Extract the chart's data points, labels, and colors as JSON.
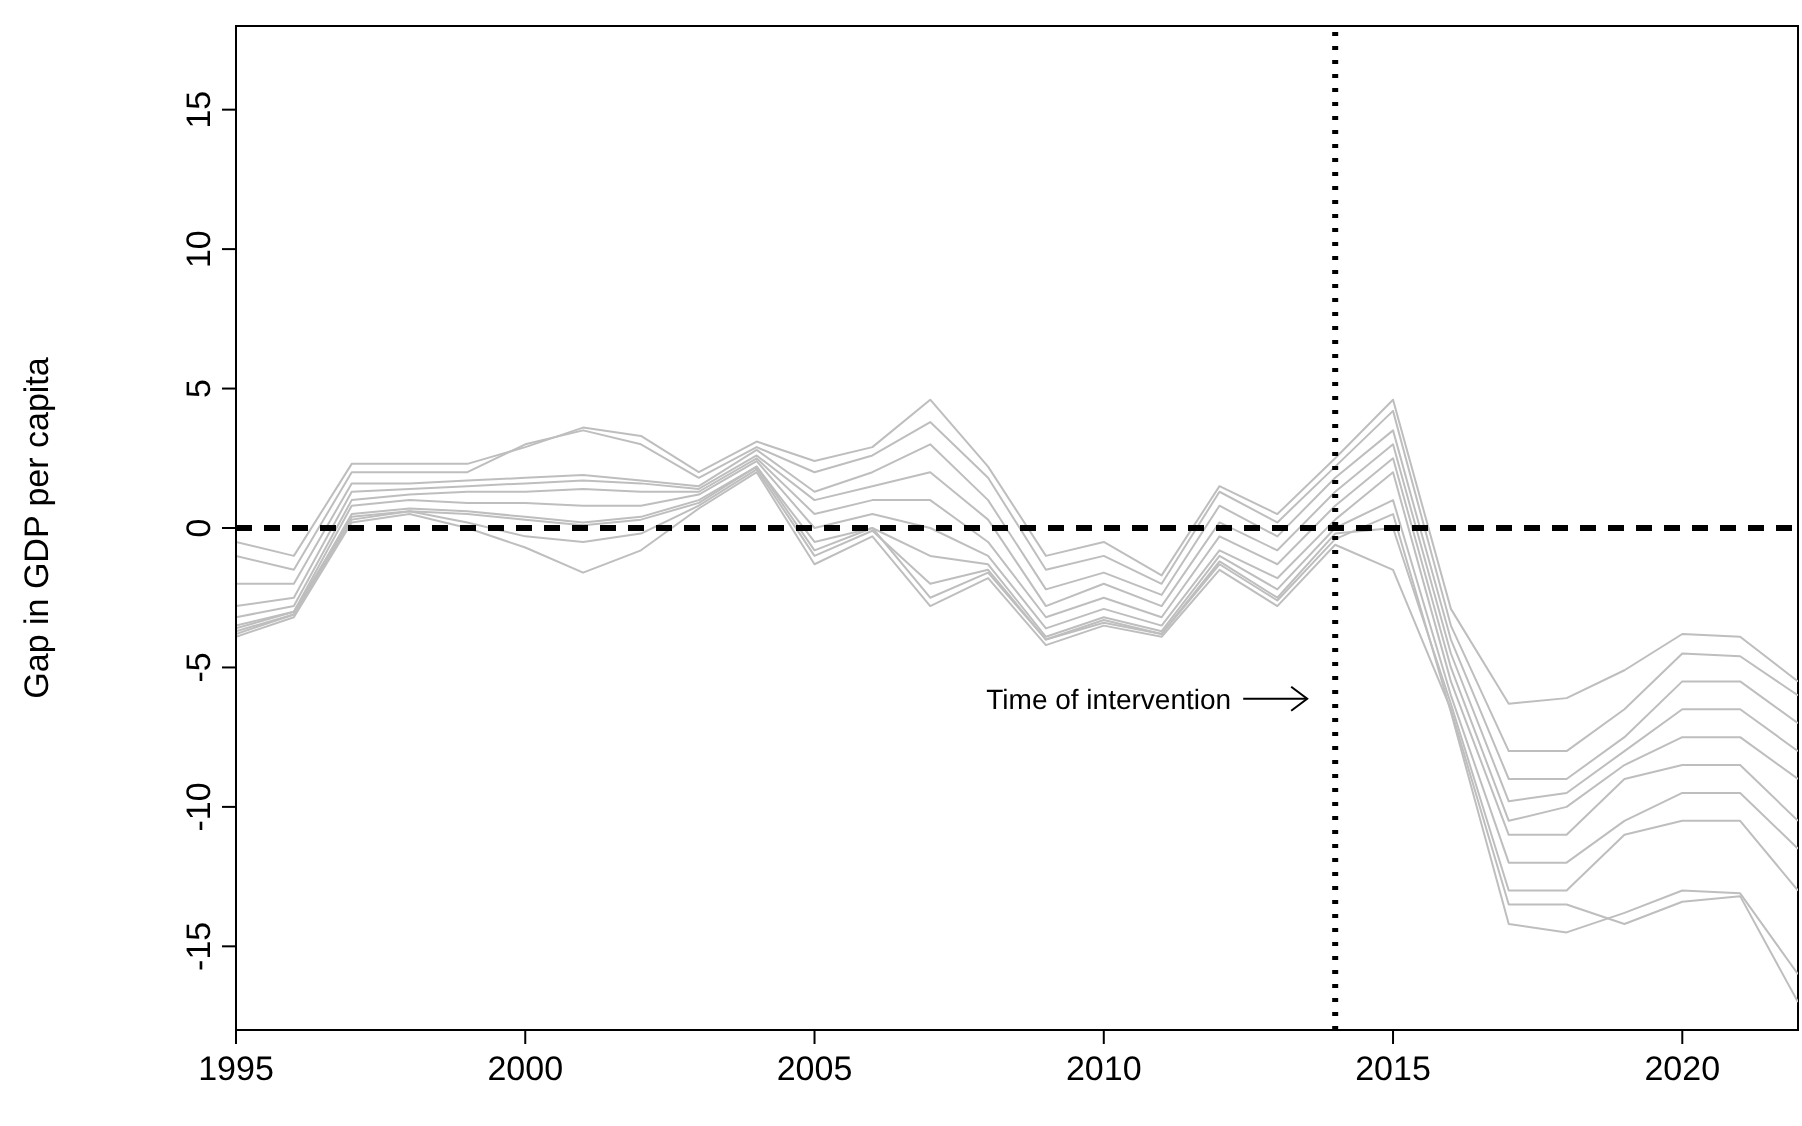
{
  "chart_data": {
    "type": "line",
    "ylabel": "Gap in GDP per capita",
    "x": [
      1995,
      1996,
      1997,
      1998,
      1999,
      2000,
      2001,
      2002,
      2003,
      2004,
      2005,
      2006,
      2007,
      2008,
      2009,
      2010,
      2011,
      2012,
      2013,
      2014,
      2015,
      2016,
      2017,
      2018,
      2019,
      2020,
      2021,
      2022
    ],
    "series": [
      {
        "color": "#bebebe",
        "values": [
          -0.5,
          -1.0,
          2.3,
          2.3,
          2.3,
          2.9,
          3.6,
          3.3,
          2.0,
          3.1,
          2.4,
          2.9,
          4.6,
          2.2,
          -1.0,
          -0.5,
          -1.7,
          1.5,
          0.5,
          2.5,
          4.6,
          -2.9,
          -6.3,
          -6.1,
          -5.1,
          -3.8,
          -3.9,
          -5.5
        ]
      },
      {
        "color": "#bebebe",
        "values": [
          -1.0,
          -1.5,
          2.0,
          2.0,
          2.0,
          3.0,
          3.5,
          3.0,
          1.8,
          2.9,
          2.0,
          2.6,
          3.8,
          1.8,
          -1.5,
          -1.0,
          -2.0,
          1.3,
          0.2,
          2.2,
          4.2,
          -3.5,
          -8.0,
          -8.0,
          -6.5,
          -4.5,
          -4.6,
          -6.0
        ]
      },
      {
        "color": "#bebebe",
        "values": [
          -2.0,
          -2.0,
          1.6,
          1.6,
          1.7,
          1.8,
          1.9,
          1.7,
          1.5,
          2.8,
          1.3,
          2.0,
          3.0,
          1.0,
          -2.2,
          -1.6,
          -2.4,
          0.8,
          -0.3,
          1.8,
          3.5,
          -4.0,
          -9.0,
          -9.0,
          -7.5,
          -5.5,
          -5.5,
          -7.0
        ]
      },
      {
        "color": "#bebebe",
        "values": [
          -2.8,
          -2.5,
          1.3,
          1.4,
          1.5,
          1.6,
          1.7,
          1.6,
          1.4,
          2.6,
          1.0,
          1.5,
          2.0,
          0.3,
          -2.8,
          -2.0,
          -2.8,
          0.2,
          -0.8,
          1.3,
          3.0,
          -4.5,
          -9.8,
          -9.5,
          -8.0,
          -6.5,
          -6.5,
          -8.0
        ]
      },
      {
        "color": "#bebebe",
        "values": [
          -3.2,
          -2.8,
          1.0,
          1.2,
          1.3,
          1.3,
          1.4,
          1.3,
          1.3,
          2.5,
          0.5,
          1.0,
          1.0,
          -0.5,
          -3.2,
          -2.5,
          -3.2,
          -0.3,
          -1.3,
          0.8,
          2.5,
          -5.0,
          -10.5,
          -10.0,
          -8.5,
          -7.5,
          -7.5,
          -9.0
        ]
      },
      {
        "color": "#bebebe",
        "values": [
          -3.5,
          -3.0,
          0.8,
          1.0,
          0.9,
          0.9,
          0.8,
          0.8,
          1.2,
          2.4,
          0.0,
          0.5,
          0.0,
          -1.0,
          -3.6,
          -2.9,
          -3.5,
          -0.8,
          -1.8,
          0.3,
          2.0,
          -5.5,
          -11.0,
          -11.0,
          -9.0,
          -8.5,
          -8.5,
          -10.5
        ]
      },
      {
        "color": "#bebebe",
        "values": [
          -3.7,
          -3.1,
          0.5,
          0.7,
          0.6,
          0.4,
          0.2,
          0.4,
          1.0,
          2.2,
          -0.5,
          0.0,
          -1.0,
          -1.3,
          -3.9,
          -3.2,
          -3.7,
          -1.0,
          -2.2,
          0.0,
          1.0,
          -6.0,
          -12.0,
          -12.0,
          -10.5,
          -9.5,
          -9.5,
          -11.5
        ]
      },
      {
        "color": "#bebebe",
        "values": [
          -3.8,
          -3.1,
          0.3,
          0.6,
          0.2,
          -0.3,
          -0.5,
          -0.2,
          0.8,
          2.1,
          -1.0,
          -0.1,
          -2.0,
          -1.5,
          -4.0,
          -3.3,
          -3.8,
          -1.2,
          -2.5,
          -0.2,
          0.0,
          -6.3,
          -13.0,
          -13.0,
          -11.0,
          -10.5,
          -10.5,
          -13.0
        ]
      },
      {
        "color": "#bebebe",
        "values": [
          -3.6,
          -3.0,
          0.4,
          0.6,
          0.5,
          0.3,
          0.1,
          0.3,
          0.9,
          2.2,
          -0.8,
          0.0,
          -2.5,
          -1.6,
          -4.0,
          -3.4,
          -3.8,
          -1.3,
          -2.6,
          -0.4,
          0.5,
          -6.6,
          -14.2,
          -14.5,
          -13.8,
          -13.0,
          -13.1,
          -16.0
        ]
      },
      {
        "color": "#bebebe",
        "values": [
          -3.9,
          -3.2,
          0.2,
          0.5,
          0.0,
          -0.7,
          -1.6,
          -0.8,
          0.7,
          2.0,
          -1.3,
          -0.3,
          -2.8,
          -1.8,
          -4.2,
          -3.5,
          -3.9,
          -1.5,
          -2.8,
          -0.6,
          -1.5,
          -6.5,
          -13.5,
          -13.5,
          -14.2,
          -13.4,
          -13.2,
          -17.0
        ]
      }
    ],
    "xlim": [
      1995,
      2022
    ],
    "xticks": [
      1995,
      2000,
      2005,
      2010,
      2015,
      2020
    ],
    "ylim": [
      -18,
      18
    ],
    "yticks": [
      -15,
      -10,
      -5,
      0,
      5,
      10,
      15
    ],
    "grid": false,
    "legend": false,
    "marker": "none",
    "line_style": "solid",
    "ref_lines": [
      {
        "axis": "y",
        "value": 0,
        "color": "#000000",
        "line_style": "dashed"
      },
      {
        "axis": "x",
        "value": 2014,
        "color": "#000000",
        "line_style": "dotted"
      }
    ],
    "annotations": [
      "Time of intervention"
    ]
  }
}
